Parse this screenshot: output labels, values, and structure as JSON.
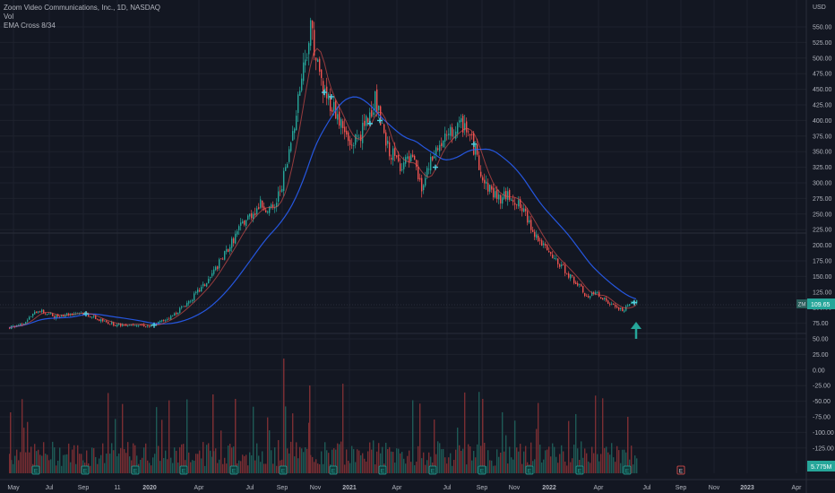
{
  "legend": {
    "title": "Zoom Video Communications, Inc., 1D, NASDAQ",
    "volume": "Vol",
    "indicator": "EMA Cross 8/34"
  },
  "axis": {
    "currency": "USD",
    "price_ticks": [
      "550.00",
      "525.00",
      "500.00",
      "475.00",
      "450.00",
      "425.00",
      "400.00",
      "375.00",
      "350.00",
      "325.00",
      "300.00",
      "275.00",
      "250.00",
      "225.00",
      "200.00",
      "175.00",
      "150.00",
      "125.00",
      "100.00",
      "75.00",
      "50.00",
      "25.00",
      "0.00",
      "-25.00",
      "-50.00",
      "-75.00",
      "-100.00",
      "-125.00"
    ],
    "time_ticks": [
      "May",
      "Jul",
      "Sep",
      "11",
      "2020",
      "Apr",
      "Jul",
      "Sep",
      "Nov",
      "2021",
      "Apr",
      "Jul",
      "Sep",
      "Nov",
      "2022",
      "Apr",
      "Jul",
      "Sep",
      "Nov",
      "2023",
      "Apr"
    ],
    "last_price_label": "109.65",
    "last_price_tag": "ZM",
    "volume_label": "5.775M"
  },
  "colors": {
    "background": "#131722",
    "up": "#26a69a",
    "down": "#ef5350",
    "ema_fast": "#ef5350",
    "ema_slow": "#2962ff",
    "signal_arrow": "#26a69a",
    "earnings_marker": "#26a69a"
  },
  "markers": {
    "earnings": "E",
    "future_earnings": "E"
  },
  "chart_data": {
    "type": "candlestick",
    "symbol": "ZM",
    "interval": "1D",
    "ylim": [
      50,
      575
    ],
    "x_dates": [
      "2019-05",
      "2019-07",
      "2019-09",
      "2019-11",
      "2020-01",
      "2020-04",
      "2020-07",
      "2020-09",
      "2020-11",
      "2021-01",
      "2021-04",
      "2021-07",
      "2021-09",
      "2021-11",
      "2022-01",
      "2022-04",
      "2022-06"
    ],
    "close_approx": [
      68,
      82,
      82,
      74,
      70,
      115,
      240,
      380,
      560,
      430,
      330,
      390,
      300,
      230,
      155,
      95,
      110
    ],
    "ema_8_approx": [
      70,
      84,
      84,
      74,
      70,
      110,
      230,
      370,
      500,
      420,
      340,
      385,
      310,
      250,
      160,
      98,
      106
    ],
    "ema_34_approx": [
      72,
      82,
      86,
      76,
      70,
      100,
      200,
      330,
      460,
      430,
      350,
      380,
      330,
      280,
      180,
      110,
      104
    ],
    "last_close": 109.65,
    "last_volume": "5.775M",
    "cross_markers_y": [
      90,
      72,
      445,
      440,
      395,
      400,
      325,
      362
    ],
    "signal": "buy"
  }
}
